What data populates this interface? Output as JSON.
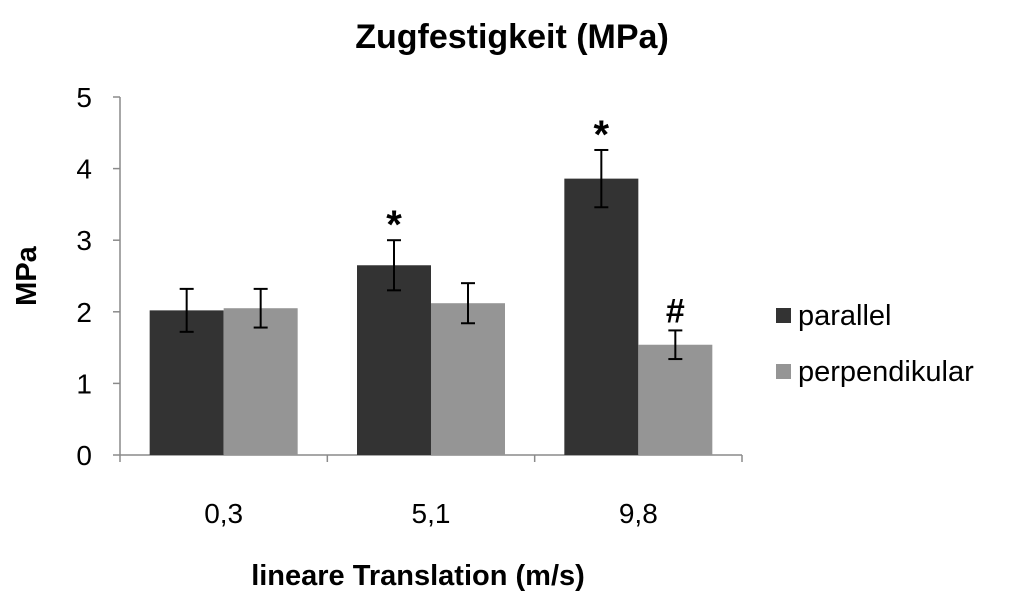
{
  "chart_data": {
    "type": "bar",
    "title": "Zugfestigkeit (MPa)",
    "xlabel": "lineare Translation (m/s)",
    "ylabel": "MPa",
    "ylim": [
      0,
      5
    ],
    "yticks": [
      0,
      1,
      2,
      3,
      4,
      5
    ],
    "categories": [
      "0,3",
      "5,1",
      "9,8"
    ],
    "grid": false,
    "legend_position": "right",
    "error_bars": true,
    "series": [
      {
        "name": "parallel",
        "color": "#333333",
        "values": [
          2.02,
          2.65,
          3.86
        ],
        "errors": [
          0.3,
          0.35,
          0.4
        ],
        "annotations": [
          "",
          "*",
          "*"
        ]
      },
      {
        "name": "perpendikular",
        "color": "#959595",
        "values": [
          2.05,
          2.12,
          1.54
        ],
        "errors": [
          0.27,
          0.28,
          0.2
        ],
        "annotations": [
          "",
          "",
          "#"
        ]
      }
    ]
  }
}
